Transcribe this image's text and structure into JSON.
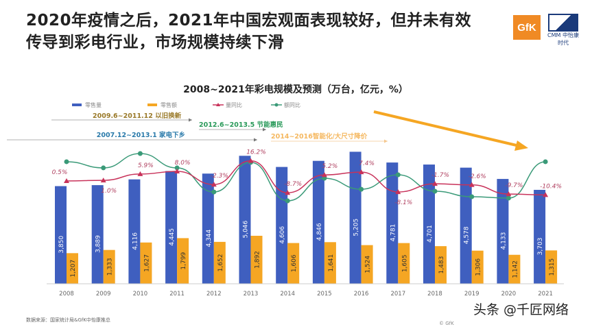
{
  "slide_title_line1": "2020年疫情之后，2021年中国宏观面表现较好，但并未有效",
  "slide_title_line2": "传导到彩电行业，市场规模持续下滑",
  "logos": {
    "gfk": "GfK",
    "cmm": "中怡康时代",
    "cmm_abbr": "CMM"
  },
  "source": "数据来源：国家统计局&GfK中怡康推总",
  "watermark": "头条 @千匠网络",
  "copyright": "© GfK",
  "colors": {
    "volume": "#3f5fbf",
    "value": "#f5a623",
    "volume_yoy": "#c8325a",
    "value_yoy": "#3a9a78",
    "trend_arrow": "#f5a623"
  },
  "annotations": [
    {
      "text": "2009.6~2011.12 以旧换新",
      "color": "#9a7a2a"
    },
    {
      "text": "2012.6~2013.5 节能惠民",
      "color": "#2a9a5a"
    },
    {
      "text": "2007.12~2013.1 家电下乡",
      "color": "#2a7aaa"
    },
    {
      "text": "2014~2016智能化/大尺寸降价",
      "color": "#f5b860"
    }
  ],
  "chart_data": {
    "type": "bar+line",
    "title": "2008~2021年彩电规模及预测（万台，亿元，%）",
    "categories": [
      "2008",
      "2009",
      "2010",
      "2011",
      "2012",
      "2013",
      "2014",
      "2015",
      "2016",
      "2017",
      "2018",
      "2019",
      "2020",
      "2021"
    ],
    "series": [
      {
        "name": "零售量",
        "type": "bar",
        "values": [
          3850,
          3889,
          4116,
          4445,
          4344,
          5046,
          4606,
          4846,
          5205,
          4781,
          4701,
          4578,
          4133,
          3703
        ],
        "labels": [
          "3,850",
          "3,889",
          "4,116",
          "4,445",
          "4,344",
          "5,046",
          "4,606",
          "4,846",
          "5,205",
          "4,781",
          "4,701",
          "4,578",
          "4,133",
          "3,703"
        ]
      },
      {
        "name": "零售额",
        "type": "bar",
        "values": [
          1207,
          1333,
          1627,
          1799,
          1652,
          1892,
          1606,
          1641,
          1524,
          1605,
          1483,
          1306,
          1142,
          1315
        ],
        "labels": [
          "1,207",
          "1,333",
          "1,627",
          "1,799",
          "1,652",
          "1,892",
          "1,606",
          "1,641",
          "1,524",
          "1,605",
          "1,483",
          "1,306",
          "1,142",
          "1,315"
        ]
      },
      {
        "name": "量同比",
        "type": "line",
        "values": [
          0.5,
          1.0,
          5.9,
          8.0,
          -2.3,
          16.2,
          -8.7,
          5.2,
          7.4,
          -8.1,
          -1.7,
          -2.6,
          -9.7,
          -10.4
        ],
        "labels": [
          "0.5%",
          "1.0%",
          "5.9%",
          "8.0%",
          "-2.3%",
          "16.2%",
          "-8.7%",
          "5.2%",
          "7.4%",
          "-8.1%",
          "-1.7%",
          "-2.6%",
          "-9.7%",
          "-10.4%"
        ]
      },
      {
        "name": "额同比",
        "type": "line",
        "values": [
          15.5,
          10.7,
          21.9,
          10.7,
          -8.1,
          15,
          -15,
          2.6,
          -6,
          5.3,
          -7.5,
          -11.8,
          -12.9,
          15.5
        ]
      }
    ],
    "legend_position": "top-left",
    "grid": false
  }
}
